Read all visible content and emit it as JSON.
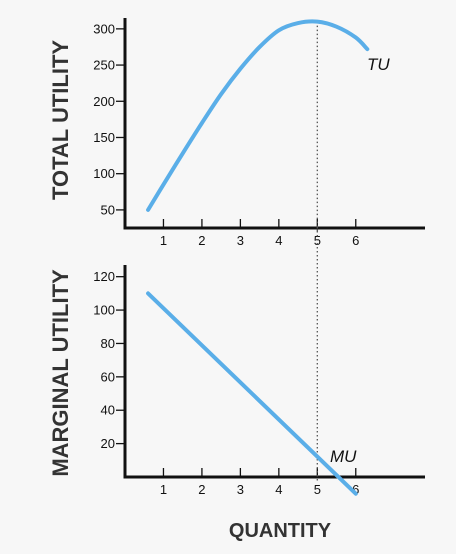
{
  "chart_data": [
    {
      "type": "line",
      "panel": "top",
      "ylabel": "TOTAL UTILITY",
      "xlabel": "",
      "ylim": [
        25,
        315
      ],
      "xlim": [
        0,
        7.8
      ],
      "yticks": [
        50,
        100,
        150,
        200,
        250,
        300
      ],
      "xticks": [
        1,
        2,
        3,
        4,
        5,
        6
      ],
      "series": [
        {
          "name": "TU",
          "color": "#5aaee8",
          "x": [
            0.6,
            1.0,
            1.5,
            2.0,
            2.5,
            3.0,
            3.5,
            4.0,
            4.5,
            5.0,
            5.5,
            6.0,
            6.3
          ],
          "y": [
            50,
            85,
            128,
            170,
            210,
            245,
            275,
            298,
            308,
            310,
            303,
            288,
            272
          ]
        }
      ],
      "annotations": [
        {
          "text": "TU"
        }
      ],
      "reference_line": {
        "x": 5,
        "style": "dotted"
      }
    },
    {
      "type": "line",
      "panel": "bottom",
      "ylabel": "MARGINAL  UTILITY",
      "xlabel": "QUANTITY",
      "ylim": [
        0,
        127
      ],
      "xlim": [
        0,
        7.8
      ],
      "yticks": [
        20,
        40,
        60,
        80,
        100,
        120
      ],
      "xticks": [
        1,
        2,
        3,
        4,
        5,
        6
      ],
      "series": [
        {
          "name": "MU",
          "color": "#5aaee8",
          "x": [
            0.6,
            6.0
          ],
          "y": [
            110,
            -10
          ]
        }
      ],
      "annotations": [
        {
          "text": "MU"
        }
      ],
      "reference_line": {
        "x": 5,
        "style": "dotted"
      }
    }
  ]
}
